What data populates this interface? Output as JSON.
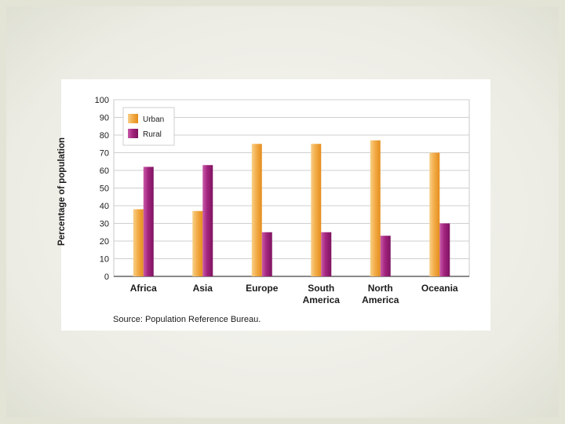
{
  "chart_data": {
    "type": "bar",
    "categories": [
      "Africa",
      "Asia",
      "Europe",
      "South America",
      "North America",
      "Oceania"
    ],
    "category_lines": [
      [
        "Africa"
      ],
      [
        "Asia"
      ],
      [
        "Europe"
      ],
      [
        "South",
        "America"
      ],
      [
        "North",
        "America"
      ],
      [
        "Oceania"
      ]
    ],
    "series": [
      {
        "name": "Urban",
        "values": [
          38,
          37,
          75,
          75,
          77,
          70
        ],
        "color": "#f0a33a"
      },
      {
        "name": "Rural",
        "values": [
          62,
          63,
          25,
          25,
          23,
          30
        ],
        "color": "#a3257e"
      }
    ],
    "ylabel": "Percentage of population",
    "xlabel": "",
    "ylim": [
      0,
      100
    ],
    "yticks": [
      0,
      10,
      20,
      30,
      40,
      50,
      60,
      70,
      80,
      90,
      100
    ],
    "grid": true,
    "legend_position": "top-left"
  },
  "source": "Source: Population Reference Bureau."
}
